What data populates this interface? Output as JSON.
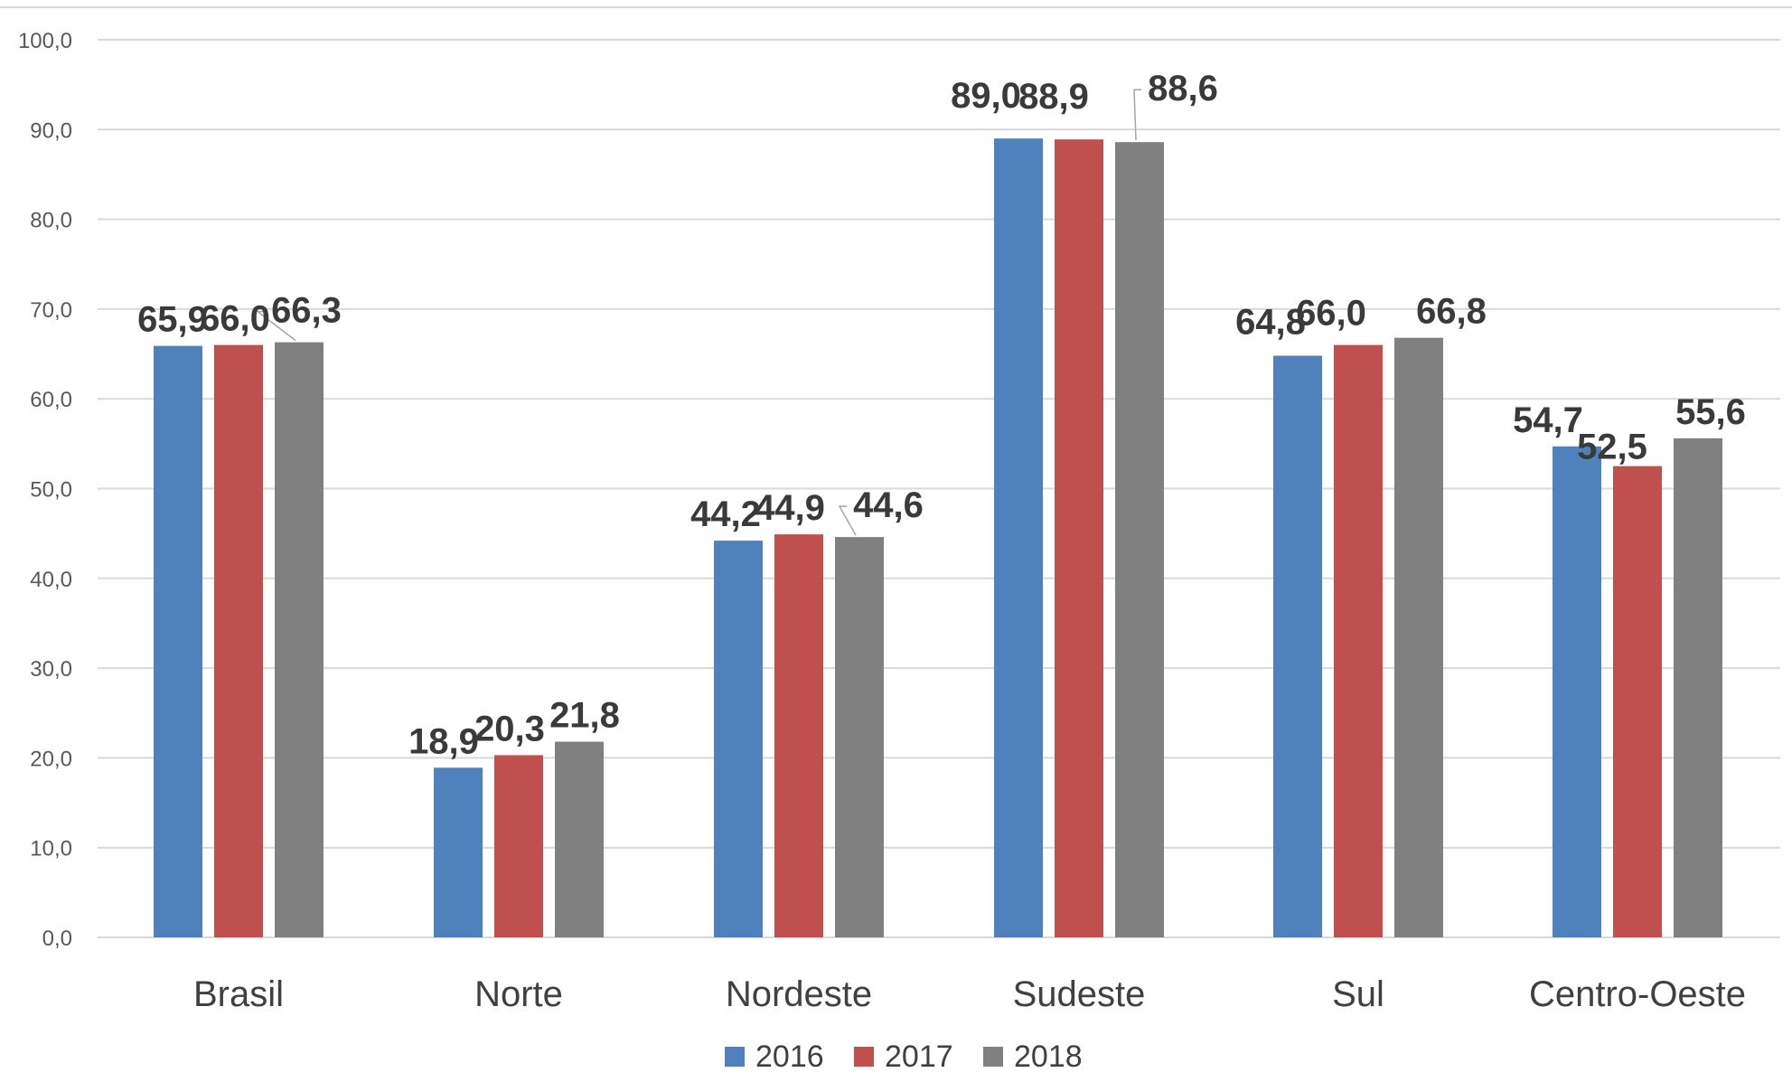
{
  "chart_data": {
    "type": "bar",
    "title": "",
    "xlabel": "",
    "ylabel": "",
    "categories": [
      "Brasil",
      "Norte",
      "Nordeste",
      "Sudeste",
      "Sul",
      "Centro-Oeste"
    ],
    "series": [
      {
        "name": "2016",
        "color": "#4f81bd",
        "values": [
          65.9,
          18.9,
          44.2,
          89.0,
          64.8,
          54.7
        ],
        "labels": [
          "65,9",
          "18,9",
          "44,2",
          "89,0",
          "64,8",
          "54,7"
        ]
      },
      {
        "name": "2017",
        "color": "#c0504d",
        "values": [
          66.0,
          20.3,
          44.9,
          88.9,
          66.0,
          52.5
        ],
        "labels": [
          "66,0",
          "20,3",
          "44,9",
          "88,9",
          "66,0",
          "52,5"
        ]
      },
      {
        "name": "2018",
        "color": "#808080",
        "values": [
          66.3,
          21.8,
          44.6,
          88.6,
          66.8,
          55.6
        ],
        "labels": [
          "66,3",
          "21,8",
          "44,6",
          "88,6",
          "66,8",
          "55,6"
        ]
      }
    ],
    "ylim": [
      0,
      100
    ],
    "yticks": [
      0,
      10,
      20,
      30,
      40,
      50,
      60,
      70,
      80,
      90,
      100
    ],
    "ytick_labels": [
      "0,0",
      "10,0",
      "20,0",
      "30,0",
      "40,0",
      "50,0",
      "60,0",
      "70,0",
      "80,0",
      "90,0",
      "100,0"
    ],
    "grid": true,
    "legend_position": "bottom"
  }
}
